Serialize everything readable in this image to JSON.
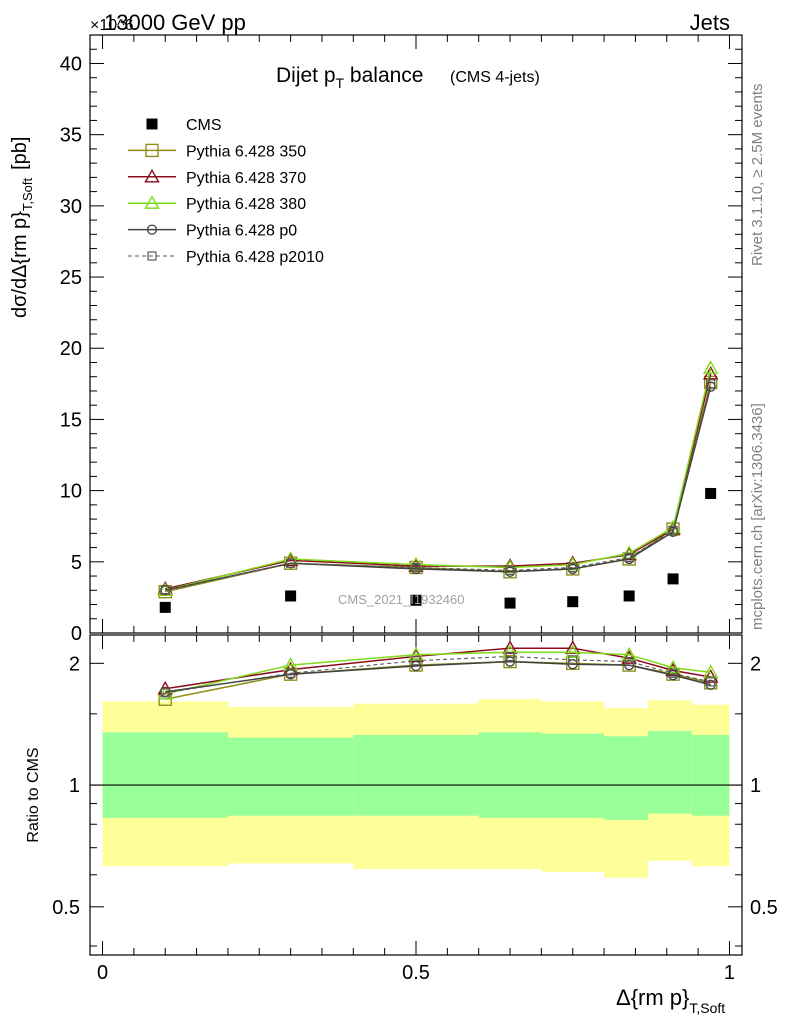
{
  "header": {
    "collision": "13000 GeV pp",
    "category": "Jets",
    "exponent": "×10^6",
    "side_rivet": "Rivet 3.1.10, ≥ 2.5M events",
    "side_mcplots": "mcplots.cern.ch [arXiv:1306.3436]",
    "analysis_id": "CMS_2021_I1932460"
  },
  "chart_data": [
    {
      "type": "scatter",
      "panel": "main",
      "title_main": "Dijet p",
      "title_sub": "T",
      "title_rest": " balance",
      "title_note": "(CMS 4-jets)",
      "ylabel": "dσ/dΔ{rm p}",
      "ylabel_sub": "T,Soft",
      "ylabel_unit": "[pb]",
      "xlim": [
        -0.02,
        1.02
      ],
      "ylim": [
        0,
        42
      ],
      "y_ticks": [
        0,
        5,
        10,
        15,
        20,
        25,
        30,
        35,
        40
      ],
      "legend_position": "top-left",
      "x": [
        0.1,
        0.3,
        0.5,
        0.65,
        0.75,
        0.84,
        0.91,
        0.97
      ],
      "data": {
        "name": "CMS",
        "values": [
          1.8,
          2.6,
          2.3,
          2.1,
          2.2,
          2.6,
          3.8,
          9.8
        ]
      },
      "series": [
        {
          "name": "Pythia 6.428 350",
          "color": "#8f8f1a",
          "marker": "square",
          "dash": "solid",
          "values": [
            2.9,
            4.9,
            4.6,
            4.3,
            4.5,
            5.2,
            7.3,
            17.6
          ]
        },
        {
          "name": "Pythia 6.428 370",
          "color": "#8b0a1e",
          "marker": "triangle",
          "dash": "solid",
          "values": [
            3.1,
            5.1,
            4.7,
            4.7,
            4.9,
            5.5,
            7.3,
            18.2
          ]
        },
        {
          "name": "Pythia 6.428 380",
          "color": "#7fdb1a",
          "marker": "triangle",
          "dash": "solid",
          "values": [
            3.0,
            5.2,
            4.8,
            4.6,
            4.8,
            5.6,
            7.4,
            18.6
          ]
        },
        {
          "name": "Pythia 6.428 p0",
          "color": "#404040",
          "marker": "circle",
          "dash": "solid",
          "values": [
            3.0,
            4.9,
            4.5,
            4.3,
            4.5,
            5.2,
            7.1,
            17.3
          ]
        },
        {
          "name": "Pythia 6.428 p2010",
          "color": "#5a5a5a",
          "marker": "square-small",
          "dash": "dashed",
          "values": [
            3.0,
            4.9,
            4.6,
            4.4,
            4.6,
            5.3,
            7.2,
            17.5
          ]
        }
      ]
    },
    {
      "type": "line",
      "panel": "ratio",
      "ylabel": "Ratio to CMS",
      "xlabel": "Δ{rm p}",
      "xlabel_sub": "T,Soft",
      "scale_y": "log",
      "xlim": [
        -0.02,
        1.02
      ],
      "ylim": [
        0.38,
        2.35
      ],
      "x_ticks": [
        0,
        0.5,
        1
      ],
      "y_ticks": [
        0.5,
        1,
        2
      ],
      "bins": [
        0,
        0.2,
        0.4,
        0.6,
        0.7,
        0.8,
        0.87,
        0.94,
        1.0
      ],
      "band_inner_low": [
        0.83,
        0.84,
        0.84,
        0.83,
        0.83,
        0.82,
        0.85,
        0.84
      ],
      "band_inner_high": [
        1.35,
        1.31,
        1.33,
        1.35,
        1.34,
        1.32,
        1.36,
        1.33
      ],
      "band_outer_low": [
        0.63,
        0.64,
        0.62,
        0.62,
        0.61,
        0.59,
        0.65,
        0.63
      ],
      "band_outer_high": [
        1.61,
        1.56,
        1.59,
        1.63,
        1.61,
        1.55,
        1.62,
        1.58
      ],
      "band_inner_color": "#99ff99",
      "band_outer_color": "#ffff99",
      "x": [
        0.1,
        0.3,
        0.5,
        0.65,
        0.75,
        0.84,
        0.91,
        0.97
      ],
      "series": [
        {
          "name": "Pythia 6.428 350",
          "color": "#8f8f1a",
          "marker": "square",
          "dash": "solid",
          "values": [
            1.63,
            1.88,
            1.98,
            2.02,
            2.0,
            1.98,
            1.88,
            1.79
          ]
        },
        {
          "name": "Pythia 6.428 370",
          "color": "#8b0a1e",
          "marker": "triangle",
          "dash": "solid",
          "values": [
            1.73,
            1.93,
            2.08,
            2.18,
            2.18,
            2.06,
            1.92,
            1.85
          ]
        },
        {
          "name": "Pythia 6.428 380",
          "color": "#7fdb1a",
          "marker": "triangle",
          "dash": "solid",
          "values": [
            1.68,
            1.98,
            2.1,
            2.13,
            2.13,
            2.1,
            1.95,
            1.9
          ]
        },
        {
          "name": "Pythia 6.428 p0",
          "color": "#404040",
          "marker": "circle",
          "dash": "solid",
          "values": [
            1.7,
            1.88,
            1.97,
            2.02,
            1.99,
            1.98,
            1.87,
            1.77
          ]
        },
        {
          "name": "Pythia 6.428 p2010",
          "color": "#5a5a5a",
          "marker": "square-small",
          "dash": "dashed",
          "values": [
            1.69,
            1.89,
            2.03,
            2.08,
            2.04,
            2.02,
            1.89,
            1.8
          ]
        }
      ]
    }
  ]
}
